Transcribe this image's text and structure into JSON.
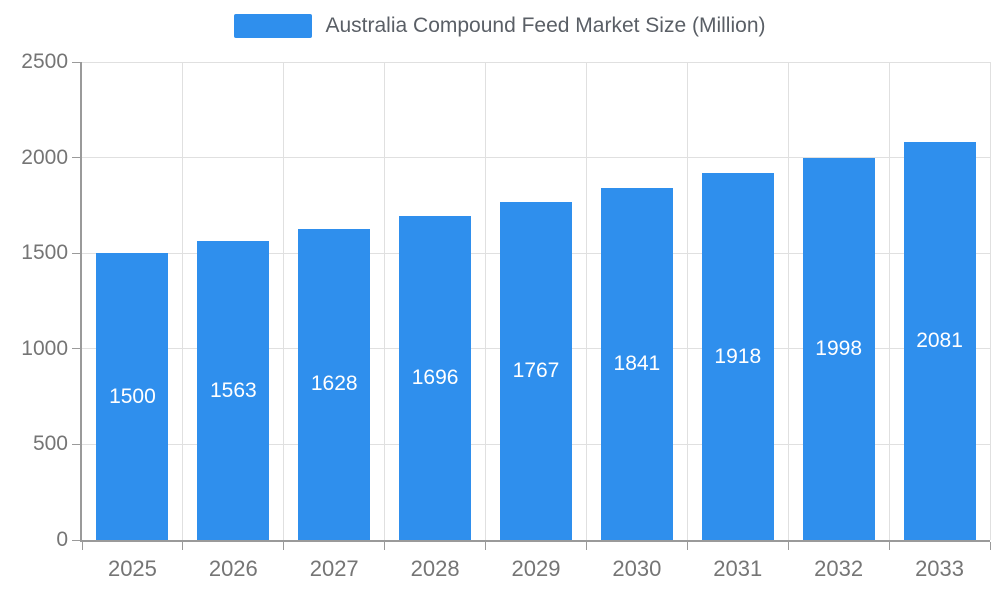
{
  "chart_data": {
    "type": "bar",
    "title": "Australia Compound Feed Market Size (Million)",
    "categories": [
      "2025",
      "2026",
      "2027",
      "2028",
      "2029",
      "2030",
      "2031",
      "2032",
      "2033"
    ],
    "series": [
      {
        "name": "Australia Compound Feed Market Size (Million)",
        "values": [
          1500,
          1563,
          1628,
          1696,
          1767,
          1841,
          1918,
          1998,
          2081
        ]
      }
    ],
    "values": [
      1500,
      1563,
      1628,
      1696,
      1767,
      1841,
      1918,
      1998,
      2081
    ],
    "value_labels": [
      "1500",
      "1563",
      "1628",
      "1696",
      "1767",
      "1841",
      "1918",
      "1998",
      "2081"
    ],
    "xlabel": "",
    "ylabel": "",
    "ylim": [
      0,
      2500
    ],
    "yticks": [
      0,
      500,
      1000,
      1500,
      2000,
      2500
    ],
    "grid": true,
    "legend_position": "top",
    "colors": {
      "bar": "#2F8FED",
      "value_label": "#FFFFFF",
      "axis": "#9A9A9A",
      "gridline": "#E0E0E0",
      "tick_label": "#757575",
      "legend_text": "#5A5F66"
    }
  }
}
